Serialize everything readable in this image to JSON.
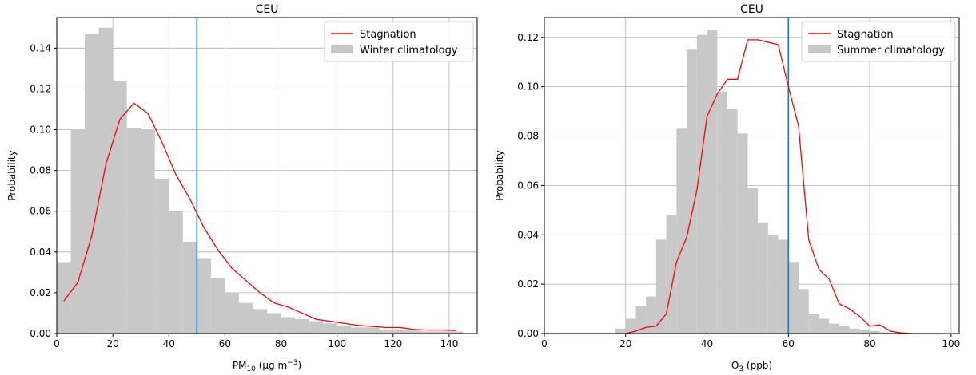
{
  "chart_data": [
    {
      "type": "histogram+line",
      "title": "CEU",
      "xlabel": {
        "prefix": "PM",
        "sub": "10",
        "rest": " (μg m",
        "sup": "−3",
        "close": ")"
      },
      "ylabel": "Probability",
      "xlim": [
        0,
        150
      ],
      "ylim": [
        0,
        0.155
      ],
      "xticks": [
        0,
        20,
        40,
        60,
        80,
        100,
        120,
        140
      ],
      "yticks": [
        0.0,
        0.02,
        0.04,
        0.06,
        0.08,
        0.1,
        0.12,
        0.14
      ],
      "ytick_decimals": 2,
      "grid": true,
      "legend_position": "top-right",
      "vline": {
        "x": 50,
        "color": "#1f77b4"
      },
      "histogram": {
        "name": "Winter climatology",
        "color": "#c8c8c8",
        "bin_width": 5,
        "bin_starts": [
          0,
          5,
          10,
          15,
          20,
          25,
          30,
          35,
          40,
          45,
          50,
          55,
          60,
          65,
          70,
          75,
          80,
          85,
          90,
          95,
          100,
          105,
          110,
          115,
          120,
          125,
          130,
          135,
          140
        ],
        "values": [
          0.035,
          0.1,
          0.147,
          0.15,
          0.124,
          0.101,
          0.1,
          0.076,
          0.06,
          0.045,
          0.037,
          0.027,
          0.02,
          0.015,
          0.012,
          0.01,
          0.008,
          0.007,
          0.006,
          0.005,
          0.004,
          0.003,
          0.003,
          0.002,
          0.002,
          0.0015,
          0.001,
          0.001,
          0.001
        ]
      },
      "line": {
        "name": "Stagnation",
        "color": "#ff0000",
        "x": [
          2.5,
          7.5,
          12.5,
          17.5,
          22.5,
          27.5,
          32.5,
          37.5,
          42.5,
          47.5,
          52.5,
          57.5,
          62.5,
          67.5,
          72.5,
          77.5,
          82.5,
          87.5,
          92.5,
          97.5,
          102.5,
          107.5,
          112.5,
          117.5,
          122.5,
          127.5,
          132.5,
          137.5,
          142.5
        ],
        "y": [
          0.016,
          0.025,
          0.048,
          0.083,
          0.105,
          0.113,
          0.108,
          0.094,
          0.078,
          0.066,
          0.052,
          0.041,
          0.032,
          0.026,
          0.02,
          0.015,
          0.013,
          0.01,
          0.007,
          0.006,
          0.005,
          0.004,
          0.0035,
          0.003,
          0.003,
          0.002,
          0.0017,
          0.0017,
          0.0015
        ]
      }
    },
    {
      "type": "histogram+line",
      "title": "CEU",
      "xlabel": {
        "prefix": "O",
        "sub": "3",
        "rest": " (ppb)",
        "sup": "",
        "close": ""
      },
      "ylabel": "Probability",
      "xlim": [
        0,
        102
      ],
      "ylim": [
        0,
        0.128
      ],
      "xticks": [
        0,
        20,
        40,
        60,
        80,
        100
      ],
      "yticks": [
        0.0,
        0.02,
        0.04,
        0.06,
        0.08,
        0.1,
        0.12
      ],
      "ytick_decimals": 2,
      "grid": true,
      "legend_position": "top-right",
      "vline": {
        "x": 60,
        "color": "#1f77b4"
      },
      "histogram": {
        "name": "Summer climatology",
        "color": "#c8c8c8",
        "bin_width": 2.5,
        "bin_starts": [
          17.5,
          20,
          22.5,
          25,
          27.5,
          30,
          32.5,
          35,
          37.5,
          40,
          42.5,
          45,
          47.5,
          50,
          52.5,
          55,
          57.5,
          60,
          62.5,
          65,
          67.5,
          70,
          72.5,
          75,
          77.5,
          80,
          82.5,
          85
        ],
        "values": [
          0.002,
          0.006,
          0.011,
          0.015,
          0.038,
          0.048,
          0.083,
          0.115,
          0.121,
          0.123,
          0.098,
          0.091,
          0.081,
          0.059,
          0.045,
          0.04,
          0.038,
          0.029,
          0.018,
          0.008,
          0.006,
          0.004,
          0.003,
          0.002,
          0.0015,
          0.001,
          0.0005,
          0.0003
        ]
      },
      "line": {
        "name": "Stagnation",
        "color": "#ff0000",
        "x": [
          0,
          20,
          22.5,
          25,
          27.5,
          30,
          32.5,
          35,
          37.5,
          40,
          42.5,
          45,
          47.5,
          50,
          52.5,
          55,
          57.5,
          60,
          62.5,
          65,
          67.5,
          70,
          72.5,
          75,
          77.5,
          80,
          82.5,
          85,
          87.5,
          90,
          92.5,
          95,
          97.5
        ],
        "y": [
          0,
          0,
          0.001,
          0.0025,
          0.003,
          0.008,
          0.029,
          0.039,
          0.058,
          0.088,
          0.097,
          0.103,
          0.103,
          0.119,
          0.119,
          0.118,
          0.117,
          0.1,
          0.084,
          0.038,
          0.026,
          0.022,
          0.012,
          0.01,
          0.007,
          0.003,
          0.0035,
          0.001,
          0.0003,
          0,
          0,
          0,
          0
        ]
      }
    }
  ]
}
